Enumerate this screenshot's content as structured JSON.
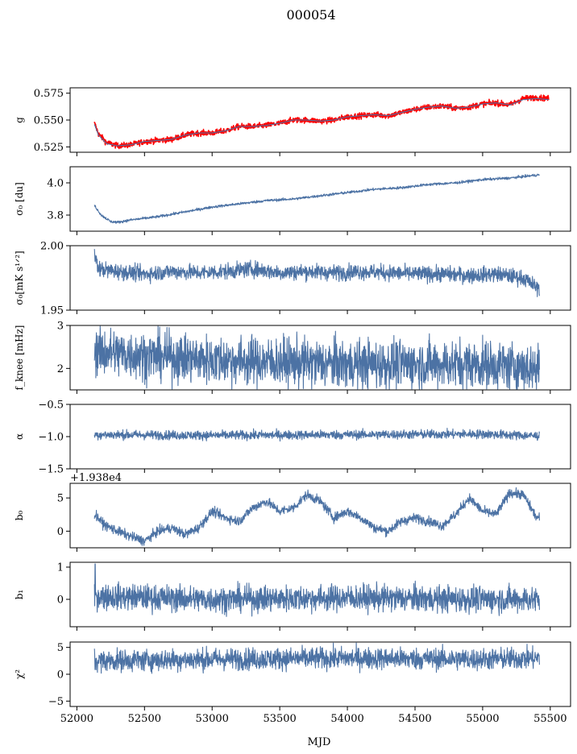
{
  "figure": {
    "title": "000054",
    "xlabel": "MJD"
  },
  "colors": {
    "series": "#4c72a4",
    "overlay": "#ff0000",
    "axes": "#000000"
  },
  "chart_data": [
    {
      "type": "line",
      "id": "g",
      "ylabel": "g",
      "ylim": [
        0.52,
        0.58
      ],
      "yticks": [
        0.525,
        0.55,
        0.575
      ],
      "ytick_labels": [
        "0.525",
        "0.550",
        "0.575"
      ],
      "xlim": [
        51950,
        55650
      ],
      "x_range": [
        52130,
        55490
      ],
      "series": [
        {
          "color": "red",
          "kind": "noisy",
          "noise": 0.0013,
          "anchors": [
            [
              52130,
              0.547
            ],
            [
              52160,
              0.537
            ],
            [
              52220,
              0.529
            ],
            [
              52300,
              0.526
            ],
            [
              52400,
              0.527
            ],
            [
              52500,
              0.53
            ],
            [
              52600,
              0.531
            ],
            [
              52700,
              0.532
            ],
            [
              52800,
              0.536
            ],
            [
              52900,
              0.538
            ],
            [
              53000,
              0.538
            ],
            [
              53100,
              0.54
            ],
            [
              53200,
              0.544
            ],
            [
              53300,
              0.544
            ],
            [
              53400,
              0.545
            ],
            [
              53500,
              0.547
            ],
            [
              53600,
              0.55
            ],
            [
              53700,
              0.55
            ],
            [
              53800,
              0.549
            ],
            [
              53900,
              0.55
            ],
            [
              54000,
              0.553
            ],
            [
              54100,
              0.554
            ],
            [
              54200,
              0.555
            ],
            [
              54300,
              0.554
            ],
            [
              54400,
              0.557
            ],
            [
              54500,
              0.56
            ],
            [
              54600,
              0.562
            ],
            [
              54700,
              0.563
            ],
            [
              54800,
              0.561
            ],
            [
              54900,
              0.562
            ],
            [
              55000,
              0.565
            ],
            [
              55100,
              0.566
            ],
            [
              55200,
              0.564
            ],
            [
              55300,
              0.57
            ],
            [
              55400,
              0.571
            ],
            [
              55490,
              0.57
            ]
          ]
        },
        {
          "color": "blue",
          "kind": "smooth",
          "anchors": [
            [
              52130,
              0.546
            ],
            [
              52160,
              0.536
            ],
            [
              52220,
              0.528
            ],
            [
              52300,
              0.526
            ],
            [
              52400,
              0.527
            ],
            [
              52500,
              0.53
            ],
            [
              52600,
              0.531
            ],
            [
              52700,
              0.532
            ],
            [
              52800,
              0.536
            ],
            [
              52900,
              0.538
            ],
            [
              53000,
              0.538
            ],
            [
              53100,
              0.54
            ],
            [
              53200,
              0.544
            ],
            [
              53300,
              0.544
            ],
            [
              53400,
              0.545
            ],
            [
              53500,
              0.547
            ],
            [
              53600,
              0.55
            ],
            [
              53700,
              0.55
            ],
            [
              53800,
              0.549
            ],
            [
              53900,
              0.55
            ],
            [
              54000,
              0.553
            ],
            [
              54100,
              0.554
            ],
            [
              54200,
              0.555
            ],
            [
              54300,
              0.554
            ],
            [
              54400,
              0.557
            ],
            [
              54500,
              0.56
            ],
            [
              54600,
              0.562
            ],
            [
              54700,
              0.563
            ],
            [
              54800,
              0.561
            ],
            [
              54900,
              0.562
            ],
            [
              55000,
              0.565
            ],
            [
              55100,
              0.566
            ],
            [
              55200,
              0.564
            ],
            [
              55300,
              0.569
            ],
            [
              55400,
              0.57
            ],
            [
              55490,
              0.569
            ]
          ]
        }
      ]
    },
    {
      "type": "line",
      "id": "sigma0-du",
      "ylabel": "σ₀ [du]",
      "ylim": [
        3.7,
        4.1
      ],
      "yticks": [
        3.8,
        4.0
      ],
      "ytick_labels": [
        "3.8",
        "4.0"
      ],
      "xlim": [
        51950,
        55650
      ],
      "x_range": [
        52130,
        55420
      ],
      "series": [
        {
          "color": "blue",
          "kind": "noisy",
          "noise": 0.004,
          "anchors": [
            [
              52130,
              3.86
            ],
            [
              52180,
              3.8
            ],
            [
              52250,
              3.76
            ],
            [
              52300,
              3.755
            ],
            [
              52400,
              3.77
            ],
            [
              52600,
              3.79
            ],
            [
              52800,
              3.82
            ],
            [
              53000,
              3.85
            ],
            [
              53200,
              3.87
            ],
            [
              53400,
              3.89
            ],
            [
              53600,
              3.9
            ],
            [
              53800,
              3.92
            ],
            [
              54000,
              3.94
            ],
            [
              54200,
              3.96
            ],
            [
              54400,
              3.97
            ],
            [
              54600,
              3.99
            ],
            [
              54800,
              4.0
            ],
            [
              55000,
              4.02
            ],
            [
              55200,
              4.03
            ],
            [
              55420,
              4.05
            ]
          ]
        }
      ]
    },
    {
      "type": "line",
      "id": "sigma0-mk",
      "ylabel": "σ₀[mK s¹ᐟ²]",
      "ylim": [
        1.95,
        2.0
      ],
      "yticks": [
        1.95,
        2.0
      ],
      "ytick_labels": [
        "1.95",
        "2.00"
      ],
      "xlim": [
        51950,
        55650
      ],
      "x_range": [
        52130,
        55420
      ],
      "series": [
        {
          "color": "blue",
          "kind": "noisy",
          "noise": 0.003,
          "anchors": [
            [
              52130,
              1.993
            ],
            [
              52160,
              1.982
            ],
            [
              52300,
              1.98
            ],
            [
              52500,
              1.978
            ],
            [
              52700,
              1.98
            ],
            [
              52900,
              1.979
            ],
            [
              53100,
              1.98
            ],
            [
              53300,
              1.982
            ],
            [
              53500,
              1.979
            ],
            [
              53700,
              1.98
            ],
            [
              53900,
              1.979
            ],
            [
              54100,
              1.98
            ],
            [
              54300,
              1.979
            ],
            [
              54500,
              1.978
            ],
            [
              54700,
              1.978
            ],
            [
              54900,
              1.977
            ],
            [
              55100,
              1.978
            ],
            [
              55300,
              1.975
            ],
            [
              55420,
              1.966
            ]
          ]
        }
      ]
    },
    {
      "type": "line",
      "id": "fknee",
      "ylabel": "f_knee [mHz]",
      "ylim": [
        1.5,
        3.0
      ],
      "yticks": [
        2,
        3
      ],
      "ytick_labels": [
        "2",
        "3"
      ],
      "xlim": [
        51950,
        55650
      ],
      "x_range": [
        52130,
        55420
      ],
      "series": [
        {
          "color": "blue",
          "kind": "noisy",
          "noise": 0.28,
          "clip": [
            1.52,
            2.98
          ],
          "anchors": [
            [
              52130,
              2.4
            ],
            [
              52500,
              2.3
            ],
            [
              53000,
              2.2
            ],
            [
              53500,
              2.15
            ],
            [
              54000,
              2.1
            ],
            [
              54500,
              2.1
            ],
            [
              55000,
              2.1
            ],
            [
              55420,
              2.0
            ]
          ]
        }
      ]
    },
    {
      "type": "line",
      "id": "alpha",
      "ylabel": "α",
      "ylim": [
        -1.5,
        -0.5
      ],
      "yticks": [
        -1.5,
        -1.0,
        -0.5
      ],
      "ytick_labels": [
        "−1.5",
        "−1.0",
        "−0.5"
      ],
      "xlim": [
        51950,
        55650
      ],
      "x_range": [
        52130,
        55420
      ],
      "series": [
        {
          "color": "blue",
          "kind": "noisy",
          "noise": 0.035,
          "anchors": [
            [
              52130,
              -0.97
            ],
            [
              53000,
              -0.98
            ],
            [
              54000,
              -0.97
            ],
            [
              55000,
              -0.96
            ],
            [
              55420,
              -0.99
            ]
          ]
        }
      ]
    },
    {
      "type": "line",
      "id": "b0",
      "ylabel": "b₀",
      "offset_text": "+1.938e4",
      "ylim": [
        -2.5,
        7.2
      ],
      "yticks": [
        0,
        5
      ],
      "ytick_labels": [
        "0",
        "5"
      ],
      "xlim": [
        51950,
        55650
      ],
      "x_range": [
        52130,
        55420
      ],
      "series": [
        {
          "color": "blue",
          "kind": "noisy",
          "noise": 0.35,
          "anchors": [
            [
              52130,
              2.6
            ],
            [
              52200,
              1.0
            ],
            [
              52300,
              0.0
            ],
            [
              52400,
              -0.8
            ],
            [
              52500,
              -1.5
            ],
            [
              52600,
              0.0
            ],
            [
              52700,
              0.5
            ],
            [
              52800,
              -0.5
            ],
            [
              52900,
              0.5
            ],
            [
              53000,
              3.0
            ],
            [
              53100,
              2.0
            ],
            [
              53200,
              1.5
            ],
            [
              53300,
              3.5
            ],
            [
              53400,
              4.5
            ],
            [
              53500,
              3.0
            ],
            [
              53600,
              3.5
            ],
            [
              53700,
              5.5
            ],
            [
              53800,
              4.5
            ],
            [
              53900,
              2.0
            ],
            [
              54000,
              3.0
            ],
            [
              54100,
              2.0
            ],
            [
              54200,
              0.5
            ],
            [
              54300,
              0.0
            ],
            [
              54400,
              1.5
            ],
            [
              54500,
              2.0
            ],
            [
              54600,
              1.5
            ],
            [
              54700,
              0.8
            ],
            [
              54800,
              2.5
            ],
            [
              54900,
              5.0
            ],
            [
              55000,
              3.0
            ],
            [
              55100,
              2.5
            ],
            [
              55200,
              5.8
            ],
            [
              55300,
              5.5
            ],
            [
              55400,
              2.0
            ],
            [
              55420,
              2.0
            ]
          ]
        }
      ]
    },
    {
      "type": "line",
      "id": "b1",
      "ylabel": "b₁",
      "ylim": [
        -0.85,
        1.15
      ],
      "yticks": [
        0,
        1
      ],
      "ytick_labels": [
        "0",
        "1"
      ],
      "xlim": [
        51950,
        55650
      ],
      "x_range": [
        52130,
        55420
      ],
      "series": [
        {
          "color": "blue",
          "kind": "noisy",
          "noise": 0.2,
          "spike": [
            52135,
            1.1
          ],
          "anchors": [
            [
              52130,
              0.1
            ],
            [
              53000,
              0.0
            ],
            [
              54000,
              0.05
            ],
            [
              55000,
              0.0
            ],
            [
              55420,
              0.0
            ]
          ]
        }
      ]
    },
    {
      "type": "line",
      "id": "chi2",
      "ylabel": "χ²",
      "ylim": [
        -6.0,
        6.0
      ],
      "yticks": [
        -5,
        0,
        5
      ],
      "ytick_labels": [
        "−5",
        "0",
        "5"
      ],
      "xlim": [
        51950,
        55650
      ],
      "x_range": [
        52130,
        55420
      ],
      "xticks": [
        52000,
        52500,
        53000,
        53500,
        54000,
        54500,
        55000,
        55500
      ],
      "xtick_labels": [
        "52000",
        "52500",
        "53000",
        "53500",
        "54000",
        "54500",
        "55000",
        "55500"
      ],
      "series": [
        {
          "color": "blue",
          "kind": "noisy",
          "noise": 1.0,
          "anchors": [
            [
              52130,
              2.5
            ],
            [
              53000,
              2.8
            ],
            [
              54000,
              3.0
            ],
            [
              55000,
              2.8
            ],
            [
              55420,
              3.0
            ]
          ]
        }
      ]
    }
  ]
}
